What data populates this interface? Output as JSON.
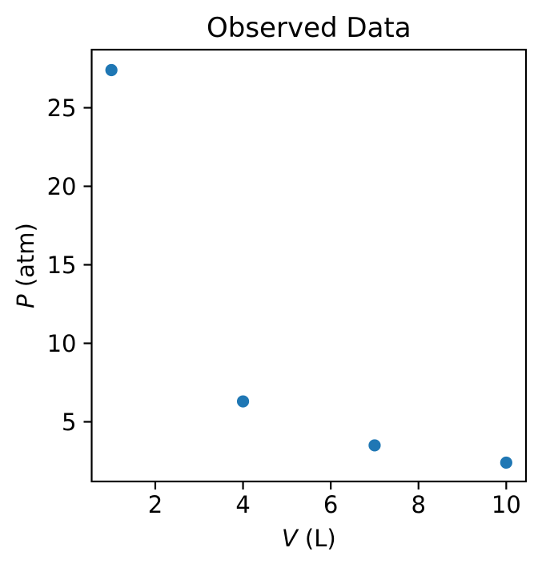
{
  "figure": {
    "title": "Observed Data",
    "background_color": "#ffffff",
    "spine_color": "#000000",
    "text_color": "#000000"
  },
  "chart_data": {
    "type": "scatter",
    "title": "Observed Data",
    "xlabel": "V (L)",
    "xlabel_var": "V",
    "xlabel_rest": " (L)",
    "ylabel": "P (atm)",
    "ylabel_var": "P",
    "ylabel_rest": " (atm)",
    "series": [
      {
        "name": "observed",
        "x": [
          1,
          4,
          7,
          10
        ],
        "y": [
          27.4,
          6.3,
          3.5,
          2.4
        ]
      }
    ],
    "xticks": [
      2,
      4,
      6,
      8,
      10
    ],
    "yticks": [
      5,
      10,
      15,
      20,
      25
    ],
    "xlim": [
      0.55,
      10.45
    ],
    "ylim": [
      1.2,
      28.7
    ],
    "grid": false,
    "legend": null,
    "marker": {
      "shape": "circle",
      "color": "#1f77b4",
      "radius_px": 7.6
    }
  }
}
